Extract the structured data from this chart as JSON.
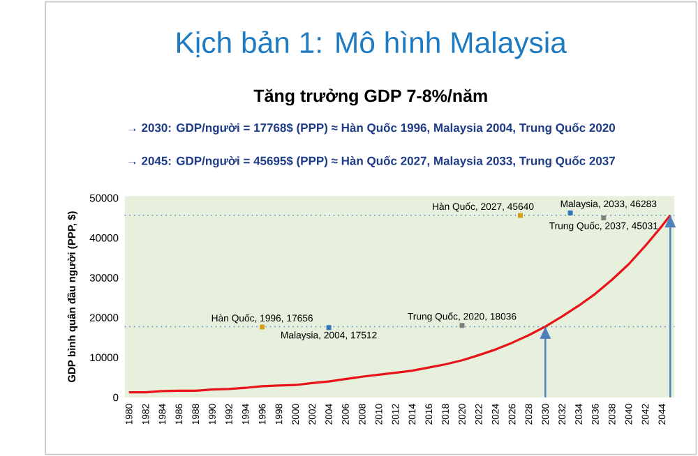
{
  "chart_data": {
    "type": "line",
    "title": "Kịch bản 1: Mô hình Malaysia",
    "subtitle": "Tăng trưởng GDP 7-8%/năm",
    "ylabel": "GDP bình quân đầu người (PPP, $)",
    "annotations": [
      "→ 2030: GDP/người = 17768$ (PPP) ≈ Hàn Quốc 1996, Malaysia 2004, Trung Quốc 2020",
      "→ 2045: GDP/người = 45695$ (PPP) ≈ Hàn Quốc 2027, Malaysia 2033, Trung Quốc 2037",
      {
        "text": "Hàn Quốc, 1996, 17656",
        "x": 1996,
        "y": 17656
      },
      {
        "text": "Malaysia, 2004, 17512",
        "x": 2004,
        "y": 17512
      },
      {
        "text": "Trung Quốc, 2020, 18036",
        "x": 2020,
        "y": 18036
      },
      {
        "text": "Hàn Quốc, 2027, 45640",
        "x": 2027,
        "y": 45640
      },
      {
        "text": "Malaysia, 2033, 46283",
        "x": 2033,
        "y": 46283
      },
      {
        "text": "Trung Quốc, 2037, 45031",
        "x": 2037,
        "y": 45031
      }
    ],
    "x": [
      1980,
      1982,
      1984,
      1986,
      1988,
      1990,
      1992,
      1994,
      1996,
      1998,
      2000,
      2002,
      2004,
      2006,
      2008,
      2010,
      2012,
      2014,
      2016,
      2018,
      2020,
      2022,
      2024,
      2026,
      2028,
      2030,
      2032,
      2034,
      2036,
      2038,
      2040,
      2042,
      2044,
      2045
    ],
    "series": [
      {
        "color": "#e8141a",
        "values": [
          1300,
          1300,
          1600,
          1700,
          1700,
          2000,
          2100,
          2400,
          2800,
          3000,
          3100,
          3600,
          4000,
          4600,
          5200,
          5700,
          6200,
          6700,
          7500,
          8300,
          9300,
          10600,
          12000,
          13700,
          15600,
          17768,
          20300,
          23000,
          26000,
          29500,
          33400,
          38000,
          43000,
          45695
        ]
      },
      {
        "type": "scatter",
        "marker": "square",
        "color": "#d4a017",
        "x": [
          1996,
          2027
        ],
        "values": [
          17656,
          45640
        ]
      },
      {
        "type": "scatter",
        "marker": "square",
        "color": "#2e75b6",
        "x": [
          2004,
          2033
        ],
        "values": [
          17512,
          46283
        ]
      },
      {
        "type": "scatter",
        "marker": "square",
        "color": "#7f7f7f",
        "x": [
          2020,
          2037
        ],
        "values": [
          18036,
          45031
        ]
      }
    ],
    "ref_lines": [
      {
        "axis": "y",
        "value": 17768,
        "color": "#4f81bd",
        "line_style": "dotted"
      },
      {
        "axis": "y",
        "value": 45695,
        "color": "#4f81bd",
        "line_style": "dotted"
      },
      {
        "axis": "x",
        "value": 2030,
        "color": "#4f81bd",
        "line_style": "solid"
      },
      {
        "axis": "x",
        "value": 2045,
        "color": "#4f81bd",
        "line_style": "solid"
      }
    ],
    "xlim": [
      1979.5,
      2045.5
    ],
    "ylim": [
      0,
      50500
    ],
    "xticks": [
      1980,
      1982,
      1984,
      1986,
      1988,
      1990,
      1992,
      1994,
      1996,
      1998,
      2000,
      2002,
      2004,
      2006,
      2008,
      2010,
      2012,
      2014,
      2016,
      2018,
      2020,
      2022,
      2024,
      2026,
      2028,
      2030,
      2032,
      2034,
      2036,
      2038,
      2040,
      2042,
      2044
    ],
    "yticks": [
      0,
      10000,
      20000,
      30000,
      40000,
      50000
    ]
  }
}
